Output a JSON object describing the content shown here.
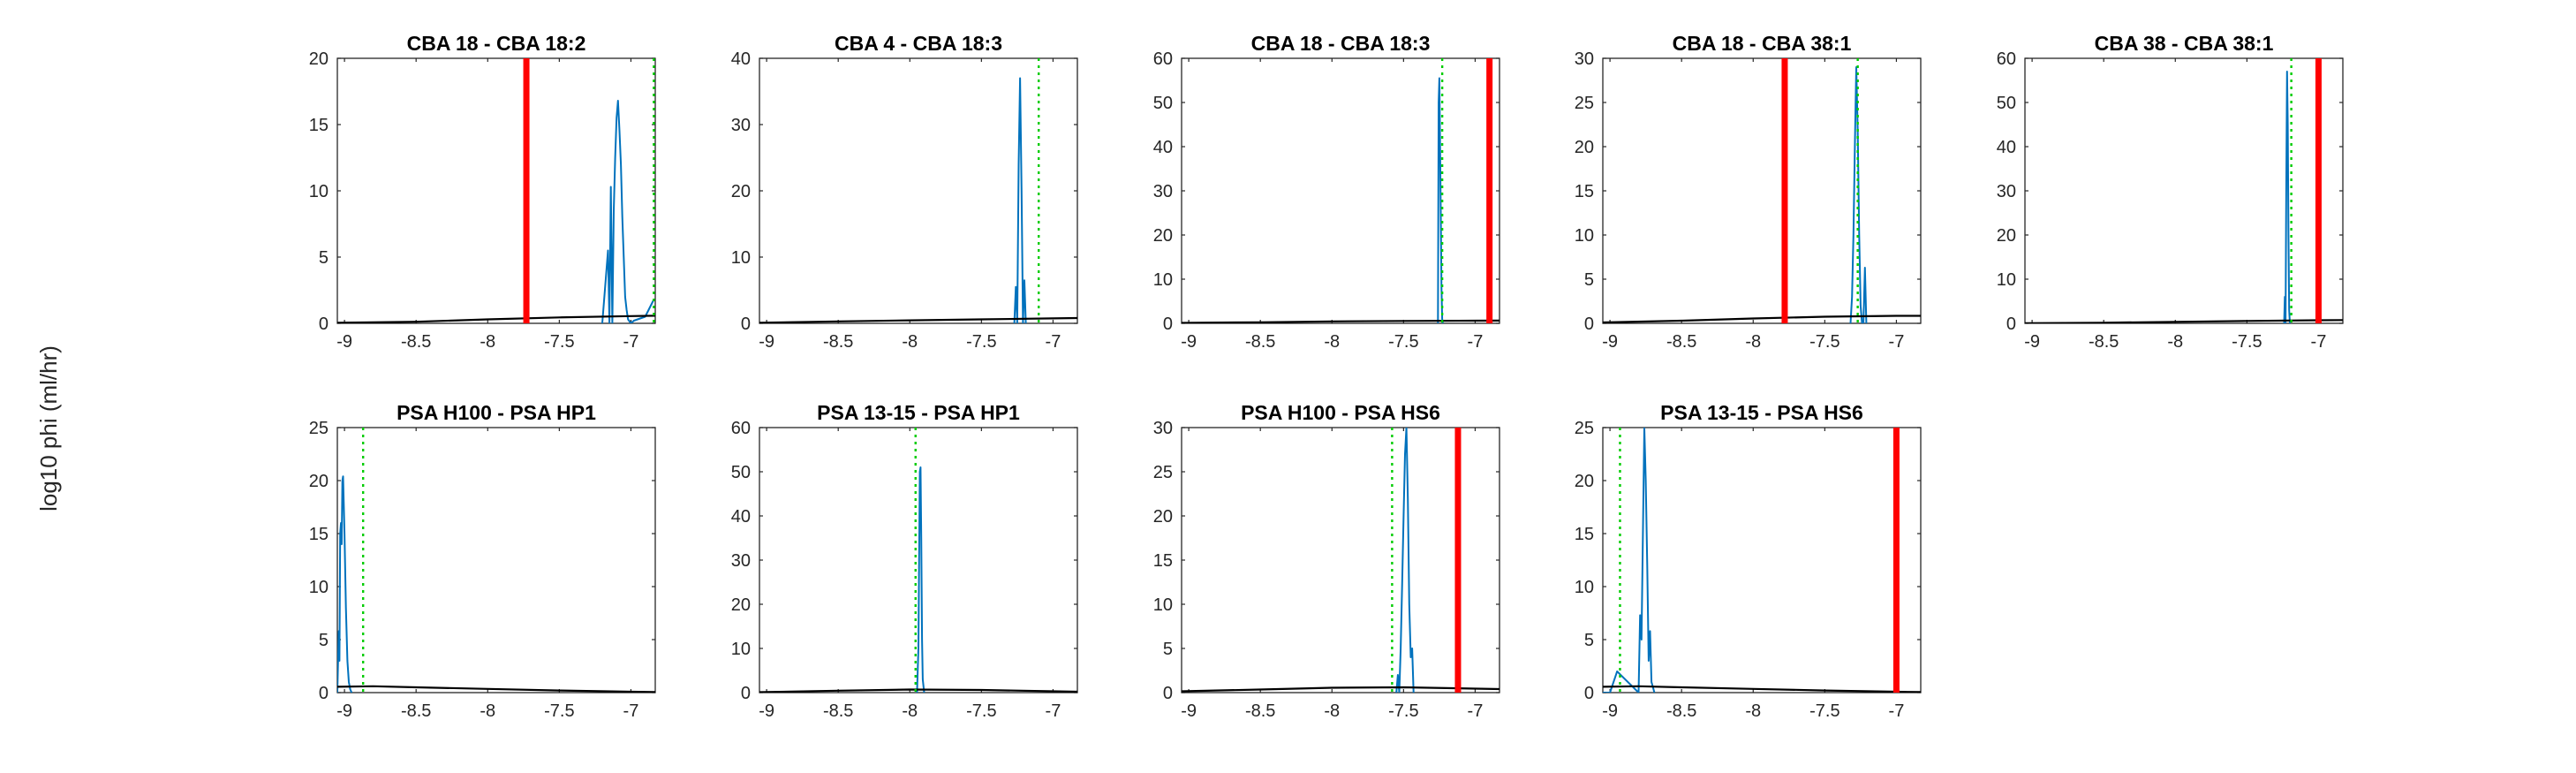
{
  "figure": {
    "ylabel": "log10 phi (ml/hr)",
    "colors": {
      "hist": "#0072BD",
      "prior": "#000000",
      "marker": "#FF0000",
      "estimate": "#00CC00",
      "axis": "#262626"
    }
  },
  "chart_data": [
    {
      "type": "line",
      "title": "CBA 18 - CBA 18:2",
      "xlim": [
        -9.05,
        -6.83
      ],
      "ylim": [
        0,
        20
      ],
      "xticks": [
        -9,
        -8.5,
        -8,
        -7.5,
        -7
      ],
      "xticklabels": [
        "-9",
        "-8.5",
        "-8",
        "-7.5",
        "-7"
      ],
      "yticks": [
        0,
        5,
        10,
        15,
        20
      ],
      "yticklabels": [
        "0",
        "5",
        "10",
        "15",
        "20"
      ],
      "series": [
        {
          "kind": "hist",
          "x": [
            -7.2,
            -7.16,
            -7.15,
            -7.14,
            -7.13,
            -7.12,
            -7.11,
            -7.1,
            -7.09,
            -7.08,
            -7.07,
            -7.06,
            -7.05,
            -7.04,
            -7.03,
            -7.02,
            -7.0,
            -6.98,
            -6.9,
            -6.84
          ],
          "y": [
            0,
            5.5,
            0,
            10.3,
            0,
            8.5,
            12.5,
            15.5,
            16.8,
            14.5,
            12,
            8,
            5,
            2,
            1,
            0.3,
            0,
            0.2,
            0.5,
            1.8
          ]
        },
        {
          "kind": "prior",
          "x": [
            -9.05,
            -8.5,
            -8,
            -7.5,
            -7,
            -6.83
          ],
          "y": [
            0.05,
            0.12,
            0.3,
            0.45,
            0.55,
            0.57
          ]
        },
        {
          "kind": "marker",
          "x": -7.73
        },
        {
          "kind": "estimate",
          "x": -6.84
        }
      ]
    },
    {
      "type": "line",
      "title": "CBA 4 - CBA 18:3",
      "xlim": [
        -9.05,
        -6.83
      ],
      "ylim": [
        0,
        40
      ],
      "xticks": [
        -9,
        -8.5,
        -8,
        -7.5,
        -7
      ],
      "xticklabels": [
        "-9",
        "-8.5",
        "-8",
        "-7.5",
        "-7"
      ],
      "yticks": [
        0,
        10,
        20,
        30,
        40
      ],
      "yticklabels": [
        "0",
        "10",
        "20",
        "30",
        "40"
      ],
      "series": [
        {
          "kind": "hist",
          "x": [
            -7.27,
            -7.26,
            -7.25,
            -7.24,
            -7.23,
            -7.22,
            -7.21,
            -7.2,
            -7.19
          ],
          "y": [
            0,
            5.5,
            0,
            24,
            37,
            20,
            0,
            6.5,
            0
          ]
        },
        {
          "kind": "prior",
          "x": [
            -9.05,
            -8.5,
            -8,
            -7.5,
            -7,
            -6.83
          ],
          "y": [
            0.1,
            0.3,
            0.45,
            0.6,
            0.75,
            0.8
          ]
        },
        {
          "kind": "estimate",
          "x": -7.1
        }
      ]
    },
    {
      "type": "line",
      "title": "CBA 18 - CBA 18:3",
      "xlim": [
        -9.05,
        -6.83
      ],
      "ylim": [
        0,
        60
      ],
      "xticks": [
        -9,
        -8.5,
        -8,
        -7.5,
        -7
      ],
      "xticklabels": [
        "-9",
        "-8.5",
        "-8",
        "-7.5",
        "-7"
      ],
      "yticks": [
        0,
        10,
        20,
        30,
        40,
        50,
        60
      ],
      "yticklabels": [
        "0",
        "10",
        "20",
        "30",
        "40",
        "50",
        "60"
      ],
      "series": [
        {
          "kind": "hist",
          "x": [
            -7.26,
            -7.255,
            -7.25,
            -7.245,
            -7.24,
            -7.235,
            -7.23,
            -7.225
          ],
          "y": [
            0,
            50,
            55.5,
            40,
            25,
            8,
            1,
            0
          ]
        },
        {
          "kind": "prior",
          "x": [
            -9.05,
            -8.5,
            -8,
            -7.5,
            -7,
            -6.83
          ],
          "y": [
            0.1,
            0.25,
            0.45,
            0.55,
            0.6,
            0.62
          ]
        },
        {
          "kind": "marker",
          "x": -6.9
        },
        {
          "kind": "estimate",
          "x": -7.23
        }
      ]
    },
    {
      "type": "line",
      "title": "CBA 18 - CBA 38:1",
      "xlim": [
        -9.05,
        -6.83
      ],
      "ylim": [
        0,
        30
      ],
      "xticks": [
        -9,
        -8.5,
        -8,
        -7.5,
        -7
      ],
      "xticklabels": [
        "-9",
        "-8.5",
        "-8",
        "-7.5",
        "-7"
      ],
      "yticks": [
        0,
        5,
        10,
        15,
        20,
        25,
        30
      ],
      "yticklabels": [
        "0",
        "5",
        "10",
        "15",
        "20",
        "25",
        "30"
      ],
      "series": [
        {
          "kind": "hist",
          "x": [
            -7.32,
            -7.31,
            -7.3,
            -7.29,
            -7.28,
            -7.27,
            -7.26,
            -7.25,
            -7.24,
            -7.23,
            -7.22,
            -7.21
          ],
          "y": [
            0,
            3,
            10,
            20,
            29,
            22,
            10,
            2,
            0,
            0,
            6.3,
            0
          ]
        },
        {
          "kind": "prior",
          "x": [
            -9.05,
            -8.5,
            -8,
            -7.5,
            -7,
            -6.83
          ],
          "y": [
            0.1,
            0.3,
            0.55,
            0.75,
            0.85,
            0.85
          ]
        },
        {
          "kind": "marker",
          "x": -7.78
        },
        {
          "kind": "estimate",
          "x": -7.27
        }
      ]
    },
    {
      "type": "line",
      "title": "CBA 38 - CBA 38:1",
      "xlim": [
        -9.05,
        -6.83
      ],
      "ylim": [
        0,
        60
      ],
      "xticks": [
        -9,
        -8.5,
        -8,
        -7.5,
        -7
      ],
      "xticklabels": [
        "-9",
        "-8.5",
        "-8",
        "-7.5",
        "-7"
      ],
      "yticks": [
        0,
        10,
        20,
        30,
        40,
        50,
        60
      ],
      "yticklabels": [
        "0",
        "10",
        "20",
        "30",
        "40",
        "50",
        "60"
      ],
      "series": [
        {
          "kind": "hist",
          "x": [
            -7.24,
            -7.235,
            -7.23,
            -7.225,
            -7.22,
            -7.215,
            -7.21,
            -7.205,
            -7.2
          ],
          "y": [
            0,
            6,
            0,
            30,
            57,
            45,
            20,
            3,
            0
          ]
        },
        {
          "kind": "prior",
          "x": [
            -9.05,
            -8.5,
            -8,
            -7.5,
            -7,
            -6.83
          ],
          "y": [
            0.05,
            0.15,
            0.35,
            0.55,
            0.7,
            0.75
          ]
        },
        {
          "kind": "marker",
          "x": -7.0
        },
        {
          "kind": "estimate",
          "x": -7.19
        }
      ]
    },
    {
      "type": "line",
      "title": "PSA H100 - PSA HP1",
      "xlim": [
        -9.05,
        -6.83
      ],
      "ylim": [
        0,
        25
      ],
      "xticks": [
        -9,
        -8.5,
        -8,
        -7.5,
        -7
      ],
      "xticklabels": [
        "-9",
        "-8.5",
        "-8",
        "-7.5",
        "-7"
      ],
      "yticks": [
        0,
        5,
        10,
        15,
        20,
        25
      ],
      "yticklabels": [
        "0",
        "5",
        "10",
        "15",
        "20",
        "25"
      ],
      "series": [
        {
          "kind": "hist",
          "x": [
            -9.05,
            -9.04,
            -9.035,
            -9.03,
            -9.025,
            -9.02,
            -9.015,
            -9.01,
            -9.0,
            -8.99,
            -8.98,
            -8.97,
            -8.96,
            -8.95
          ],
          "y": [
            0,
            5.8,
            3,
            15,
            16,
            14,
            20,
            20.4,
            15,
            8,
            3,
            1,
            0.3,
            0
          ]
        },
        {
          "kind": "prior",
          "x": [
            -9.05,
            -8.8,
            -8.5,
            -8,
            -7.5,
            -7,
            -6.83
          ],
          "y": [
            0.55,
            0.6,
            0.5,
            0.35,
            0.2,
            0.08,
            0.05
          ]
        },
        {
          "kind": "estimate",
          "x": -8.87
        }
      ]
    },
    {
      "type": "line",
      "title": "PSA 13-15 - PSA HP1",
      "xlim": [
        -9.05,
        -6.83
      ],
      "ylim": [
        0,
        60
      ],
      "xticks": [
        -9,
        -8.5,
        -8,
        -7.5,
        -7
      ],
      "xticklabels": [
        "-9",
        "-8.5",
        "-8",
        "-7.5",
        "-7"
      ],
      "yticks": [
        0,
        10,
        20,
        30,
        40,
        50,
        60
      ],
      "yticklabels": [
        "0",
        "10",
        "20",
        "30",
        "40",
        "50",
        "60"
      ],
      "series": [
        {
          "kind": "hist",
          "x": [
            -7.95,
            -7.94,
            -7.935,
            -7.93,
            -7.925,
            -7.92,
            -7.915,
            -7.91,
            -7.9
          ],
          "y": [
            0,
            10,
            30,
            50,
            51,
            35,
            12,
            3,
            0
          ]
        },
        {
          "kind": "prior",
          "x": [
            -9.05,
            -8.5,
            -8,
            -7.5,
            -7,
            -6.83
          ],
          "y": [
            0.1,
            0.45,
            0.7,
            0.6,
            0.3,
            0.2
          ]
        },
        {
          "kind": "estimate",
          "x": -7.96
        }
      ]
    },
    {
      "type": "line",
      "title": "PSA H100 - PSA HS6",
      "xlim": [
        -9.05,
        -6.83
      ],
      "ylim": [
        0,
        30
      ],
      "xticks": [
        -9,
        -8.5,
        -8,
        -7.5,
        -7
      ],
      "xticklabels": [
        "-9",
        "-8.5",
        "-8",
        "-7.5",
        "-7"
      ],
      "yticks": [
        0,
        5,
        10,
        15,
        20,
        25,
        30
      ],
      "yticklabels": [
        "0",
        "5",
        "10",
        "15",
        "20",
        "25",
        "30"
      ],
      "series": [
        {
          "kind": "hist",
          "x": [
            -7.55,
            -7.54,
            -7.53,
            -7.52,
            -7.51,
            -7.5,
            -7.49,
            -7.48,
            -7.47,
            -7.46,
            -7.45,
            -7.44,
            -7.43
          ],
          "y": [
            0,
            2,
            0,
            5,
            12,
            20,
            27,
            30,
            22,
            10,
            4,
            5,
            0
          ]
        },
        {
          "kind": "prior",
          "x": [
            -9.05,
            -8.5,
            -8,
            -7.5,
            -7,
            -6.83
          ],
          "y": [
            0.15,
            0.35,
            0.55,
            0.6,
            0.45,
            0.4
          ]
        },
        {
          "kind": "marker",
          "x": -7.12
        },
        {
          "kind": "estimate",
          "x": -7.58
        }
      ]
    },
    {
      "type": "line",
      "title": "PSA 13-15 - PSA HS6",
      "xlim": [
        -9.05,
        -6.83
      ],
      "ylim": [
        0,
        25
      ],
      "xticks": [
        -9,
        -8.5,
        -8,
        -7.5,
        -7
      ],
      "xticklabels": [
        "-9",
        "-8.5",
        "-8",
        "-7.5",
        "-7"
      ],
      "yticks": [
        0,
        5,
        10,
        15,
        20,
        25
      ],
      "yticklabels": [
        "0",
        "5",
        "10",
        "15",
        "20",
        "25"
      ],
      "series": [
        {
          "kind": "hist",
          "x": [
            -9.05,
            -9.0,
            -8.95,
            -8.8,
            -8.79,
            -8.78,
            -8.77,
            -8.76,
            -8.75,
            -8.74,
            -8.73,
            -8.72,
            -8.71,
            -8.7,
            -8.69
          ],
          "y": [
            0,
            0,
            2,
            0,
            7.3,
            5,
            15,
            25,
            20,
            12,
            3,
            5.8,
            1,
            0.5,
            0
          ]
        },
        {
          "kind": "prior",
          "x": [
            -9.05,
            -8.8,
            -8.5,
            -8,
            -7.5,
            -7,
            -6.83
          ],
          "y": [
            0.55,
            0.6,
            0.5,
            0.35,
            0.2,
            0.08,
            0.05
          ]
        },
        {
          "kind": "marker",
          "x": -7.0
        },
        {
          "kind": "estimate",
          "x": -8.93
        }
      ]
    }
  ]
}
